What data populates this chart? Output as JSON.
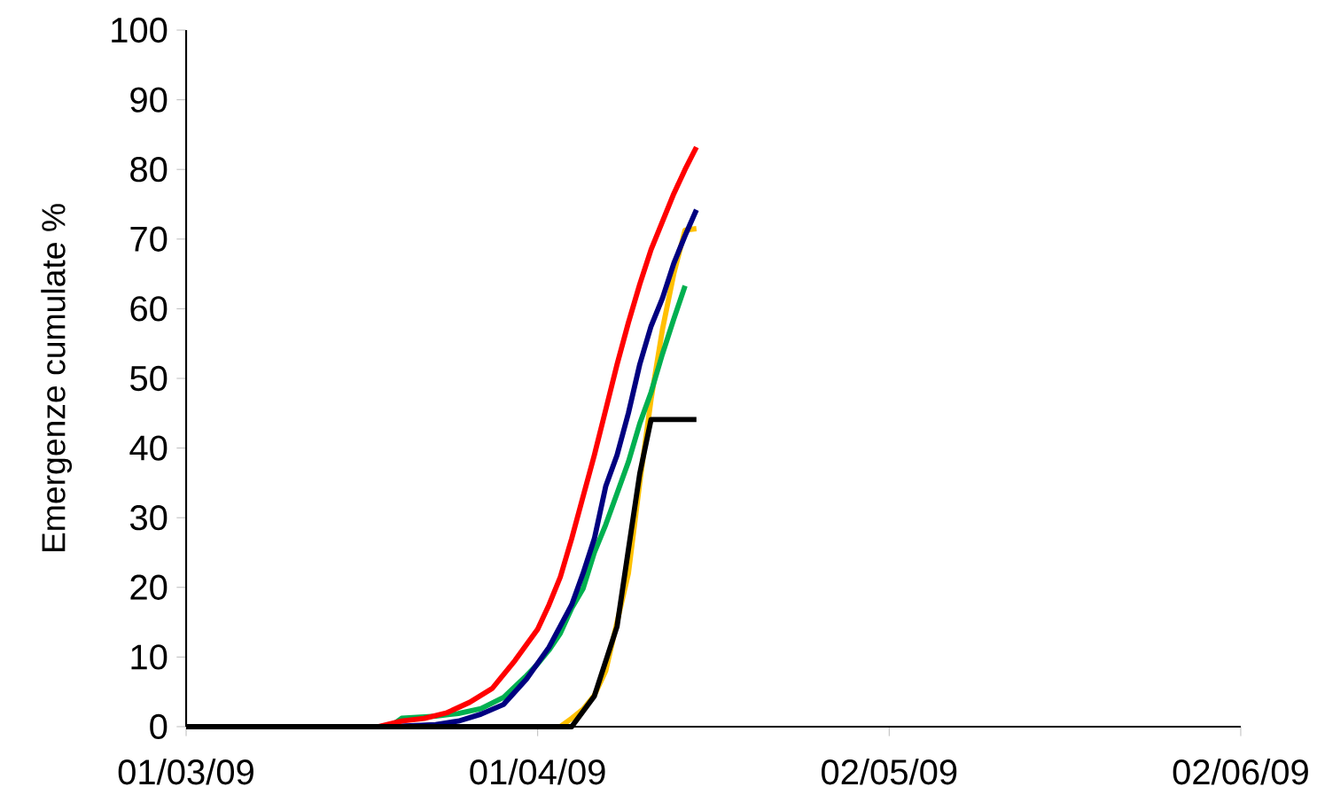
{
  "chart_data": {
    "type": "line",
    "ylabel": "Emergenze cumulate %",
    "xlim": [
      "2009-03-01",
      "2009-06-02"
    ],
    "xticks": [
      {
        "value": "2009-03-01",
        "label": "01/03/09"
      },
      {
        "value": "2009-04-01",
        "label": "01/04/09"
      },
      {
        "value": "2009-05-02",
        "label": "02/05/09"
      },
      {
        "value": "2009-06-02",
        "label": "02/06/09"
      }
    ],
    "ylim": [
      0,
      100
    ],
    "yticks": [
      0,
      10,
      20,
      30,
      40,
      50,
      60,
      70,
      80,
      90,
      100
    ],
    "grid": false,
    "series": [
      {
        "color": "#ffc000",
        "x": [
          "2009-03-01",
          "2009-04-03",
          "2009-04-04",
          "2009-04-05",
          "2009-04-06",
          "2009-04-07",
          "2009-04-08",
          "2009-04-09",
          "2009-04-10",
          "2009-04-11",
          "2009-04-12",
          "2009-04-13",
          "2009-04-14",
          "2009-04-15"
        ],
        "values": [
          0,
          0,
          1.2,
          2.5,
          4.5,
          8,
          15,
          22,
          35,
          47,
          57,
          65,
          71.3,
          71.5
        ]
      },
      {
        "color": "#00b050",
        "x": [
          "2009-03-01",
          "2009-03-19",
          "2009-03-20",
          "2009-03-23",
          "2009-03-25",
          "2009-03-27",
          "2009-03-29",
          "2009-03-31",
          "2009-04-01",
          "2009-04-02",
          "2009-04-03",
          "2009-04-04",
          "2009-04-05",
          "2009-04-06",
          "2009-04-07",
          "2009-04-08",
          "2009-04-09",
          "2009-04-10",
          "2009-04-11",
          "2009-04-12",
          "2009-04-13",
          "2009-04-14"
        ],
        "values": [
          0,
          0,
          1.2,
          1.5,
          1.9,
          2.6,
          4.2,
          7.3,
          9,
          11,
          13.4,
          17,
          19.8,
          25,
          29,
          33.5,
          38,
          43.5,
          48,
          53.5,
          58.5,
          63.3
        ]
      },
      {
        "color": "#000080",
        "x": [
          "2009-03-01",
          "2009-03-19",
          "2009-03-23",
          "2009-03-25",
          "2009-03-27",
          "2009-03-29",
          "2009-03-31",
          "2009-04-02",
          "2009-04-04",
          "2009-04-05",
          "2009-04-06",
          "2009-04-07",
          "2009-04-08",
          "2009-04-09",
          "2009-04-10",
          "2009-04-11",
          "2009-04-12",
          "2009-04-13",
          "2009-04-14",
          "2009-04-15"
        ],
        "values": [
          0,
          0,
          0.3,
          0.8,
          1.8,
          3.2,
          6.8,
          11.4,
          17.5,
          22,
          27,
          34.5,
          39,
          45,
          52,
          57.5,
          61.5,
          66.5,
          70.5,
          74.2
        ]
      },
      {
        "color": "#ff0000",
        "x": [
          "2009-03-01",
          "2009-03-18",
          "2009-03-20",
          "2009-03-22",
          "2009-03-24",
          "2009-03-26",
          "2009-03-28",
          "2009-03-30",
          "2009-04-01",
          "2009-04-02",
          "2009-04-03",
          "2009-04-04",
          "2009-04-05",
          "2009-04-06",
          "2009-04-07",
          "2009-04-08",
          "2009-04-09",
          "2009-04-10",
          "2009-04-11",
          "2009-04-12",
          "2009-04-13",
          "2009-04-14",
          "2009-04-15"
        ],
        "values": [
          0,
          0,
          0.8,
          1.2,
          2,
          3.5,
          5.5,
          9.5,
          14,
          17.5,
          21.5,
          27,
          33,
          39,
          45.5,
          52,
          58,
          63.5,
          68.5,
          72.5,
          76.5,
          80,
          83.2
        ]
      },
      {
        "color": "#000000",
        "x": [
          "2009-03-01",
          "2009-04-04",
          "2009-04-06",
          "2009-04-08",
          "2009-04-09",
          "2009-04-10",
          "2009-04-11",
          "2009-04-15"
        ],
        "values": [
          0,
          0,
          4.4,
          14.4,
          25.4,
          36.3,
          44.1,
          44.1
        ]
      }
    ]
  }
}
